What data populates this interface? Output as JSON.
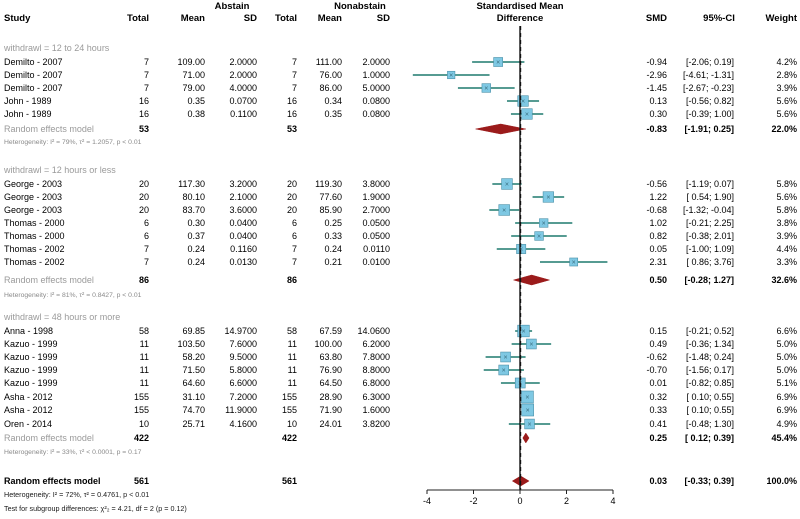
{
  "headers": {
    "study": "Study",
    "abstain": "Abstain",
    "nonabstain": "Nonabstain",
    "smd_title_1": "Standardised Mean",
    "smd_title_2": "Difference",
    "total": "Total",
    "mean": "Mean",
    "sd": "SD",
    "smd": "SMD",
    "ci": "95%-CI",
    "weight": "Weight"
  },
  "groups": [
    {
      "label": "withdrawl = 12 to 24 hours",
      "studies": [
        {
          "study": "Demilto - 2007",
          "n1": "7",
          "mean1": "109.00",
          "sd1": "2.0000",
          "n2": "7",
          "mean2": "111.00",
          "sd2": "2.0000",
          "smd": -0.94,
          "lo": -2.06,
          "hi": 0.19,
          "smd_text": "-0.94",
          "ci_text": "[-2.06; 0.19]",
          "weight": "4.2%"
        },
        {
          "study": "Demilto - 2007",
          "n1": "7",
          "mean1": "71.00",
          "sd1": "2.0000",
          "n2": "7",
          "mean2": "76.00",
          "sd2": "1.0000",
          "smd": -2.96,
          "lo": -4.61,
          "hi": -1.31,
          "smd_text": "-2.96",
          "ci_text": "[-4.61; -1.31]",
          "weight": "2.8%"
        },
        {
          "study": "Demilto - 2007",
          "n1": "7",
          "mean1": "79.00",
          "sd1": "4.0000",
          "n2": "7",
          "mean2": "86.00",
          "sd2": "5.0000",
          "smd": -1.45,
          "lo": -2.67,
          "hi": -0.23,
          "smd_text": "-1.45",
          "ci_text": "[-2.67; -0.23]",
          "weight": "3.9%"
        },
        {
          "study": "John - 1989",
          "n1": "16",
          "mean1": "0.35",
          "sd1": "0.0700",
          "n2": "16",
          "mean2": "0.34",
          "sd2": "0.0800",
          "smd": 0.13,
          "lo": -0.56,
          "hi": 0.82,
          "smd_text": "0.13",
          "ci_text": "[-0.56; 0.82]",
          "weight": "5.6%"
        },
        {
          "study": "John - 1989",
          "n1": "16",
          "mean1": "0.38",
          "sd1": "0.1100",
          "n2": "16",
          "mean2": "0.35",
          "sd2": "0.0800",
          "smd": 0.3,
          "lo": -0.39,
          "hi": 1.0,
          "smd_text": "0.30",
          "ci_text": "[-0.39; 1.00]",
          "weight": "5.6%"
        }
      ],
      "summary": {
        "label": "Random effects model",
        "n1": "53",
        "n2": "53",
        "smd": -0.83,
        "lo": -1.91,
        "hi": 0.25,
        "smd_text": "-0.83",
        "ci_text": "[-1.91; 0.25]",
        "weight": "22.0%"
      },
      "het": "Heterogeneity: I² = 79%, τ² = 1.2057, p < 0.01"
    },
    {
      "label": "withdrawl = 12 hours or less",
      "studies": [
        {
          "study": "George - 2003",
          "n1": "20",
          "mean1": "117.30",
          "sd1": "3.2000",
          "n2": "20",
          "mean2": "119.30",
          "sd2": "3.8000",
          "smd": -0.56,
          "lo": -1.19,
          "hi": 0.07,
          "smd_text": "-0.56",
          "ci_text": "[-1.19; 0.07]",
          "weight": "5.8%"
        },
        {
          "study": "George - 2003",
          "n1": "20",
          "mean1": "80.10",
          "sd1": "2.1000",
          "n2": "20",
          "mean2": "77.60",
          "sd2": "1.9000",
          "smd": 1.22,
          "lo": 0.54,
          "hi": 1.9,
          "smd_text": "1.22",
          "ci_text": "[ 0.54; 1.90]",
          "weight": "5.6%"
        },
        {
          "study": "George - 2003",
          "n1": "20",
          "mean1": "83.70",
          "sd1": "3.6000",
          "n2": "20",
          "mean2": "85.90",
          "sd2": "2.7000",
          "smd": -0.68,
          "lo": -1.32,
          "hi": -0.04,
          "smd_text": "-0.68",
          "ci_text": "[-1.32; -0.04]",
          "weight": "5.8%"
        },
        {
          "study": "Thomas - 2000",
          "n1": "6",
          "mean1": "0.30",
          "sd1": "0.0400",
          "n2": "6",
          "mean2": "0.25",
          "sd2": "0.0500",
          "smd": 1.02,
          "lo": -0.21,
          "hi": 2.25,
          "smd_text": "1.02",
          "ci_text": "[-0.21; 2.25]",
          "weight": "3.8%"
        },
        {
          "study": "Thomas - 2000",
          "n1": "6",
          "mean1": "0.37",
          "sd1": "0.0400",
          "n2": "6",
          "mean2": "0.33",
          "sd2": "0.0500",
          "smd": 0.82,
          "lo": -0.38,
          "hi": 2.01,
          "smd_text": "0.82",
          "ci_text": "[-0.38; 2.01]",
          "weight": "3.9%"
        },
        {
          "study": "Thomas - 2002",
          "n1": "7",
          "mean1": "0.24",
          "sd1": "0.1160",
          "n2": "7",
          "mean2": "0.24",
          "sd2": "0.0110",
          "smd": 0.05,
          "lo": -1.0,
          "hi": 1.09,
          "smd_text": "0.05",
          "ci_text": "[-1.00; 1.09]",
          "weight": "4.4%"
        },
        {
          "study": "Thomas - 2002",
          "n1": "7",
          "mean1": "0.24",
          "sd1": "0.0130",
          "n2": "7",
          "mean2": "0.21",
          "sd2": "0.0100",
          "smd": 2.31,
          "lo": 0.86,
          "hi": 3.76,
          "smd_text": "2.31",
          "ci_text": "[ 0.86; 3.76]",
          "weight": "3.3%"
        }
      ],
      "summary": {
        "label": "Random effects model",
        "n1": "86",
        "n2": "86",
        "smd": 0.5,
        "lo": -0.28,
        "hi": 1.27,
        "smd_text": "0.50",
        "ci_text": "[-0.28; 1.27]",
        "weight": "32.6%"
      },
      "het": "Heterogeneity: I² = 81%, τ² = 0.8427, p < 0.01"
    },
    {
      "label": "withdrawl = 48 hours or more",
      "studies": [
        {
          "study": "Anna - 1998",
          "n1": "58",
          "mean1": "69.85",
          "sd1": "14.9700",
          "n2": "58",
          "mean2": "67.59",
          "sd2": "14.0600",
          "smd": 0.15,
          "lo": -0.21,
          "hi": 0.52,
          "smd_text": "0.15",
          "ci_text": "[-0.21; 0.52]",
          "weight": "6.6%"
        },
        {
          "study": "Kazuo - 1999",
          "n1": "11",
          "mean1": "103.50",
          "sd1": "7.6000",
          "n2": "11",
          "mean2": "100.00",
          "sd2": "6.2000",
          "smd": 0.49,
          "lo": -0.36,
          "hi": 1.34,
          "smd_text": "0.49",
          "ci_text": "[-0.36; 1.34]",
          "weight": "5.0%"
        },
        {
          "study": "Kazuo - 1999",
          "n1": "11",
          "mean1": "58.20",
          "sd1": "9.5000",
          "n2": "11",
          "mean2": "63.80",
          "sd2": "7.8000",
          "smd": -0.62,
          "lo": -1.48,
          "hi": 0.24,
          "smd_text": "-0.62",
          "ci_text": "[-1.48; 0.24]",
          "weight": "5.0%"
        },
        {
          "study": "Kazuo - 1999",
          "n1": "11",
          "mean1": "71.50",
          "sd1": "5.8000",
          "n2": "11",
          "mean2": "76.90",
          "sd2": "8.8000",
          "smd": -0.7,
          "lo": -1.56,
          "hi": 0.17,
          "smd_text": "-0.70",
          "ci_text": "[-1.56; 0.17]",
          "weight": "5.0%"
        },
        {
          "study": "Kazuo - 1999",
          "n1": "11",
          "mean1": "64.60",
          "sd1": "6.6000",
          "n2": "11",
          "mean2": "64.50",
          "sd2": "6.8000",
          "smd": 0.01,
          "lo": -0.82,
          "hi": 0.85,
          "smd_text": "0.01",
          "ci_text": "[-0.82; 0.85]",
          "weight": "5.1%"
        },
        {
          "study": "Asha - 2012",
          "n1": "155",
          "mean1": "31.10",
          "sd1": "7.2000",
          "n2": "155",
          "mean2": "28.90",
          "sd2": "6.3000",
          "smd": 0.32,
          "lo": 0.1,
          "hi": 0.55,
          "smd_text": "0.32",
          "ci_text": "[ 0.10; 0.55]",
          "weight": "6.9%"
        },
        {
          "study": "Asha - 2012",
          "n1": "155",
          "mean1": "74.70",
          "sd1": "11.9000",
          "n2": "155",
          "mean2": "71.90",
          "sd2": "1.6000",
          "smd": 0.33,
          "lo": 0.1,
          "hi": 0.55,
          "smd_text": "0.33",
          "ci_text": "[ 0.10; 0.55]",
          "weight": "6.9%"
        },
        {
          "study": "Oren - 2014",
          "n1": "10",
          "mean1": "25.71",
          "sd1": "4.1600",
          "n2": "10",
          "mean2": "24.01",
          "sd2": "3.8200",
          "smd": 0.41,
          "lo": -0.48,
          "hi": 1.3,
          "smd_text": "0.41",
          "ci_text": "[-0.48; 1.30]",
          "weight": "4.9%"
        }
      ],
      "summary": {
        "label": "Random effects model",
        "n1": "422",
        "n2": "422",
        "smd": 0.25,
        "lo": 0.12,
        "hi": 0.39,
        "smd_text": "0.25",
        "ci_text": "[ 0.12; 0.39]",
        "weight": "45.4%"
      },
      "het": "Heterogeneity: I² = 33%, τ² < 0.0001, p = 0.17"
    }
  ],
  "overall": {
    "label": "Random effects model",
    "n1": "561",
    "n2": "561",
    "smd": 0.03,
    "lo": -0.33,
    "hi": 0.39,
    "smd_text": "0.03",
    "ci_text": "[-0.33; 0.39]",
    "weight": "100.0%"
  },
  "overall_het": "Heterogeneity: I² = 72%, τ² = 0.4761, p < 0.01",
  "subgroup_test": "Test for subgroup differences: χ²₂ = 4.21, df = 2 (p = 0.12)",
  "chart_data": {
    "type": "forest",
    "title": "Standardised Mean Difference",
    "xlim": [
      -4,
      4
    ],
    "xticks": [
      -4,
      -2,
      0,
      2,
      4
    ],
    "reference_line": 0,
    "overall_line": 0.03
  },
  "colors": {
    "ci_line": "#1f7a6e",
    "square": "#7ec8e3",
    "square_edge": "#4a90a8",
    "diamond": "#9b1b1b",
    "grey_text": "#9a9a9a"
  }
}
